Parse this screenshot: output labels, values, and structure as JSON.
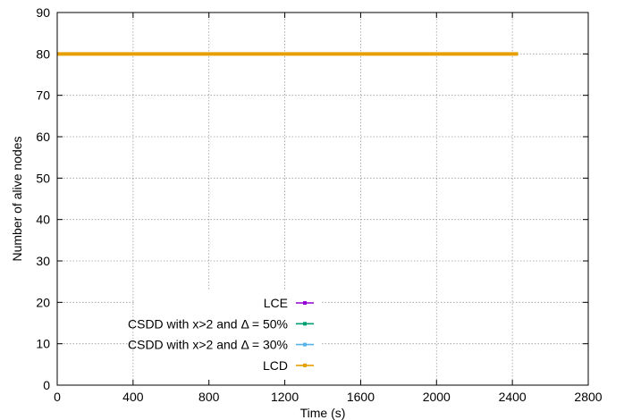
{
  "chart_data": {
    "type": "line",
    "title": "",
    "xlabel": "Time (s)",
    "ylabel": "Number of alive nodes",
    "xlim": [
      0,
      2800
    ],
    "ylim": [
      0,
      90
    ],
    "xticks": [
      0,
      400,
      800,
      1200,
      1600,
      2000,
      2400,
      2800
    ],
    "yticks": [
      0,
      10,
      20,
      30,
      40,
      50,
      60,
      70,
      80,
      90
    ],
    "grid": true,
    "legend_position": "bottom-center",
    "series": [
      {
        "name": "LCE",
        "color": "#9400d3",
        "x": [
          0,
          2430
        ],
        "y": [
          80,
          80
        ]
      },
      {
        "name": "CSDD with x>2 and Δ = 50%",
        "color": "#009e73",
        "x": [
          0,
          2430
        ],
        "y": [
          80,
          80
        ]
      },
      {
        "name": "CSDD with x>2 and Δ = 30%",
        "color": "#56b4e9",
        "x": [
          0,
          2430
        ],
        "y": [
          80,
          80
        ]
      },
      {
        "name": "LCD",
        "color": "#e69f00",
        "x": [
          0,
          2430
        ],
        "y": [
          80,
          80
        ]
      }
    ]
  }
}
